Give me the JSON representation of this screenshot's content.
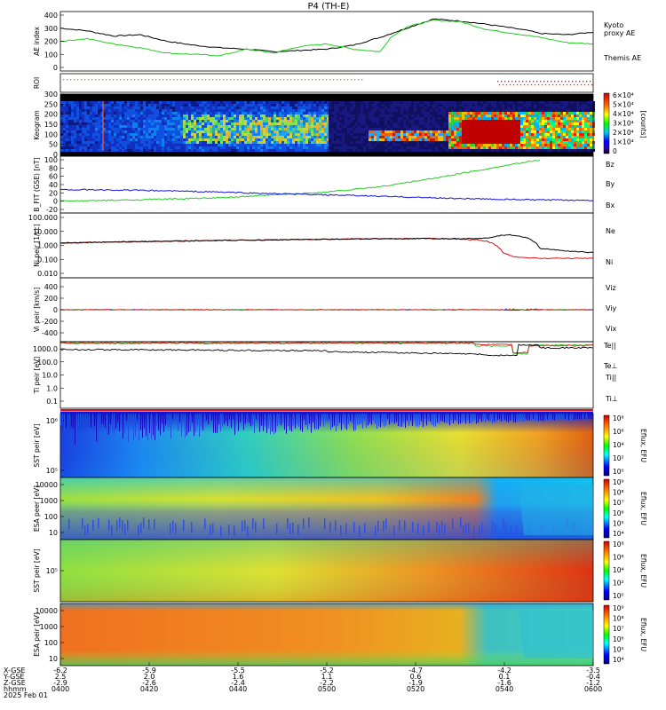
{
  "title": "P4 (TH-E)",
  "colors": {
    "black": "#000000",
    "green": "#22cc22",
    "red": "#dd1111",
    "blue": "#1111dd",
    "darkred": "#990000"
  },
  "chart_data": [
    {
      "id": "ae",
      "type": "line",
      "ylabel": "AE index",
      "yticks": [
        "400",
        "300",
        "200",
        "100",
        "0"
      ],
      "ylim": [
        0,
        400
      ],
      "series": [
        {
          "name": "Themis AE",
          "color": "#000000",
          "x": [
            0,
            0.05,
            0.1,
            0.15,
            0.2,
            0.25,
            0.3,
            0.35,
            0.4,
            0.45,
            0.5,
            0.55,
            0.6,
            0.65,
            0.7,
            0.75,
            0.8,
            0.85,
            0.88,
            0.9,
            0.95,
            1.0
          ],
          "values": [
            300,
            280,
            240,
            250,
            200,
            170,
            150,
            140,
            120,
            130,
            140,
            170,
            230,
            300,
            370,
            355,
            330,
            300,
            280,
            260,
            250,
            270
          ]
        },
        {
          "name": "Kyoto proxy AE",
          "color": "#22cc22",
          "x": [
            0,
            0.05,
            0.1,
            0.15,
            0.2,
            0.25,
            0.3,
            0.35,
            0.4,
            0.45,
            0.5,
            0.55,
            0.6,
            0.62,
            0.65,
            0.7,
            0.75,
            0.8,
            0.85,
            0.9,
            0.95,
            1.0
          ],
          "values": [
            200,
            220,
            180,
            150,
            110,
            100,
            90,
            140,
            110,
            160,
            180,
            140,
            120,
            230,
            310,
            360,
            350,
            290,
            260,
            230,
            190,
            180
          ]
        }
      ],
      "legend": [
        "Kyoto",
        "proxy AE",
        "Themis AE"
      ]
    },
    {
      "id": "roi",
      "type": "scatter",
      "ylabel": "ROI"
    },
    {
      "id": "keogram",
      "type": "heatmap",
      "ylabel": "Keogram",
      "yticks": [
        "300",
        "250",
        "200",
        "150",
        "100",
        "50",
        "0"
      ],
      "colorbar_ticks": [
        "6×10⁴",
        "5×10⁴",
        "4×10⁴",
        "3×10⁴",
        "2×10⁴",
        "1×10⁴",
        "0"
      ],
      "colorbar_label": "[counts]"
    },
    {
      "id": "bfield",
      "type": "line",
      "ylabel": "B_FIT (GSE) [nT]",
      "yticks": [
        "100",
        "80",
        "60",
        "40",
        "20",
        "0",
        "-20"
      ],
      "ylim": [
        -20,
        100
      ],
      "series": [
        {
          "name": "Bz",
          "color": "#dd1111",
          "values": []
        },
        {
          "name": "By",
          "color": "#22cc22",
          "x": [
            0,
            0.1,
            0.2,
            0.3,
            0.4,
            0.5,
            0.6,
            0.7,
            0.8,
            0.9,
            1.0
          ],
          "values": [
            0,
            2,
            5,
            8,
            15,
            22,
            35,
            55,
            78,
            100,
            130
          ]
        },
        {
          "name": "Bx",
          "color": "#1111dd",
          "x": [
            0,
            0.1,
            0.2,
            0.3,
            0.4,
            0.5,
            0.6,
            0.7,
            0.8,
            0.9,
            1.0
          ],
          "values": [
            28,
            27,
            25,
            22,
            18,
            15,
            12,
            8,
            5,
            3,
            2
          ]
        }
      ]
    },
    {
      "id": "density",
      "type": "line",
      "ylabel": "Ni peir [1/cc]",
      "yticks": [
        "100.000",
        "10.000",
        "1.000",
        "0.100",
        "0.010"
      ],
      "series": [
        {
          "name": "Ne",
          "color": "#dd1111",
          "x": [
            0,
            0.2,
            0.4,
            0.6,
            0.7,
            0.78,
            0.8,
            0.83,
            0.85,
            0.9,
            1.0
          ],
          "values": [
            1.5,
            2.0,
            2.5,
            3.0,
            3.2,
            2.5,
            2.0,
            0.3,
            0.15,
            0.12,
            0.12
          ]
        },
        {
          "name": "Ni",
          "color": "#000000",
          "x": [
            0,
            0.2,
            0.4,
            0.6,
            0.7,
            0.8,
            0.84,
            0.87,
            0.9,
            0.95,
            1.0
          ],
          "values": [
            1.5,
            2.0,
            2.5,
            3.0,
            3.0,
            3.2,
            6.0,
            4.0,
            0.6,
            0.4,
            0.3
          ]
        }
      ]
    },
    {
      "id": "velocity",
      "type": "line",
      "ylabel": "Vi peir [km/s]",
      "yticks": [
        "400",
        "200",
        "0",
        "-200",
        "-400"
      ],
      "ylim": [
        -500,
        500
      ],
      "series": [
        {
          "name": "Viz",
          "color": "#dd1111"
        },
        {
          "name": "Viy",
          "color": "#22cc22"
        },
        {
          "name": "Vix",
          "color": "#1111dd"
        }
      ]
    },
    {
      "id": "temp",
      "type": "line",
      "ylabel": "Ti peir [eV]",
      "yticks": [
        "1000.0",
        "100.0",
        "10.0",
        "1.0",
        "0.1"
      ],
      "series": [
        {
          "name": "Te||",
          "color": "#000000"
        },
        {
          "name": "Te⊥",
          "color": "#dd1111"
        },
        {
          "name": "Ti||",
          "color": "#22cc22"
        },
        {
          "name": "Ti⊥",
          "color": "#1111dd"
        }
      ]
    },
    {
      "id": "sst_e",
      "type": "heatmap",
      "ylabel": "SST peir [eV]",
      "yticks": [
        "10⁶",
        "10⁵"
      ],
      "colorbar_ticks": [
        "10⁸",
        "10⁶",
        "10⁴",
        "10²",
        "10⁰"
      ],
      "colorbar_label": "Eflux, EFU"
    },
    {
      "id": "esa_e",
      "type": "heatmap",
      "ylabel": "ESA peer [eV]",
      "yticks": [
        "10000",
        "1000",
        "100",
        "10"
      ],
      "colorbar_ticks": [
        "10⁹",
        "10⁸",
        "10⁷",
        "10⁶",
        "10⁵",
        "10⁴"
      ],
      "colorbar_label": "Eflux, EFU"
    },
    {
      "id": "sst_i",
      "type": "heatmap",
      "ylabel": "SST peir [eV]",
      "yticks": [
        "10⁵"
      ],
      "colorbar_ticks": [
        "10⁸",
        "10⁶",
        "10⁴",
        "10²",
        "10⁰"
      ],
      "colorbar_label": "Eflux, EFU"
    },
    {
      "id": "esa_i",
      "type": "heatmap",
      "ylabel": "ESA peir [eV]",
      "yticks": [
        "10000",
        "1000",
        "100",
        "10"
      ],
      "colorbar_ticks": [
        "10⁹",
        "10⁸",
        "10⁷",
        "10⁶",
        "10⁵",
        "10⁴"
      ],
      "colorbar_label": "Eflux, EFU"
    }
  ],
  "xaxis": {
    "row_labels": [
      "X-GSE",
      "Y-GSE",
      "Z-GSE",
      "hhmm",
      "2025 Feb 01"
    ],
    "columns": [
      {
        "x": "-6.2",
        "y": "2.5",
        "z": "-2.9",
        "t": "0400"
      },
      {
        "x": "-5.9",
        "y": "2.0",
        "z": "-2.6",
        "t": "0420"
      },
      {
        "x": "-5.5",
        "y": "1.6",
        "z": "-2.4",
        "t": "0440"
      },
      {
        "x": "-5.2",
        "y": "1.1",
        "z": "-2.2",
        "t": "0500"
      },
      {
        "x": "-4.7",
        "y": "0.6",
        "z": "-1.9",
        "t": "0520"
      },
      {
        "x": "-4.2",
        "y": "0.1",
        "z": "-1.6",
        "t": "0540"
      },
      {
        "x": "-3.5",
        "y": "-0.4",
        "z": "-1.2",
        "t": "0600"
      }
    ]
  }
}
